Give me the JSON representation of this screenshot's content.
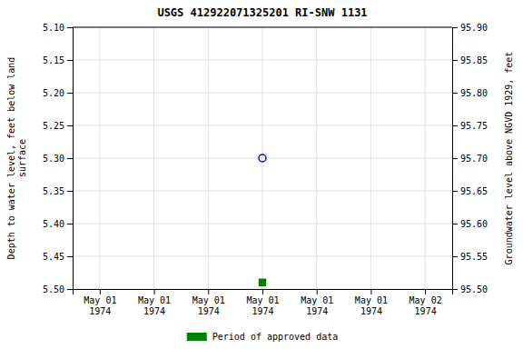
{
  "chart_data": {
    "type": "scatter",
    "title": "USGS 412922071325201 RI-SNW 1131",
    "categories": [
      "May 01\n1974",
      "May 01\n1974",
      "May 01\n1974",
      "May 01\n1974",
      "May 01\n1974",
      "May 01\n1974",
      "May 02\n1974"
    ],
    "series": [
      {
        "color": "#0000ff",
        "marker": "circle-open",
        "values": [
          null,
          null,
          null,
          5.3,
          null,
          null,
          null
        ]
      },
      {
        "name": "Period of approved data",
        "color": "#008000",
        "marker": "square",
        "values": [
          null,
          null,
          null,
          5.49,
          null,
          null,
          null
        ]
      }
    ],
    "y_label": "Depth to water level, feet below land\nsurface",
    "y2_label": "Groundwater level above NGVD 1929, feet",
    "ylim": [
      5.5,
      5.1
    ],
    "yticks": [
      {
        "value": 5.1,
        "label": "5.10"
      },
      5.15,
      {
        "value": 5.2,
        "label": "5.20"
      },
      5.25,
      {
        "value": 5.3,
        "label": "5.30"
      },
      5.35,
      {
        "value": 5.4,
        "label": "5.40"
      },
      5.45,
      {
        "value": 5.5,
        "label": "5.50"
      }
    ],
    "y2lim": [
      95.5,
      95.9
    ],
    "y2ticks": [
      {
        "value": 95.9,
        "label": "95.90"
      },
      95.85,
      {
        "value": 95.8,
        "label": "95.80"
      },
      95.75,
      {
        "value": 95.7,
        "label": "95.70"
      },
      95.65,
      {
        "value": 95.6,
        "label": "95.60"
      },
      95.55,
      {
        "value": 95.5,
        "label": "95.50"
      }
    ],
    "grid": true,
    "legend": "bottom"
  }
}
